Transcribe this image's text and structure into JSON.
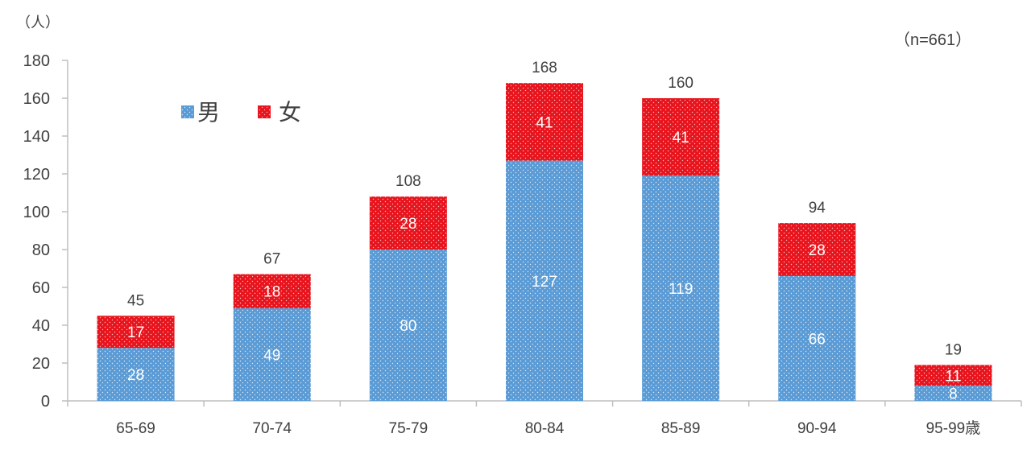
{
  "chart_data": {
    "type": "bar",
    "stacked": true,
    "unit_label": "（人）",
    "note": "（n=661）",
    "categories": [
      "65-69",
      "70-74",
      "75-79",
      "80-84",
      "85-89",
      "90-94",
      "95-99歳"
    ],
    "series": [
      {
        "name": "男",
        "color": "#5b9bd5",
        "pattern": "dotted",
        "values": [
          28,
          49,
          80,
          127,
          119,
          66,
          8
        ]
      },
      {
        "name": "女",
        "color": "#e8141d",
        "pattern": "dotted",
        "values": [
          17,
          18,
          28,
          41,
          41,
          28,
          11
        ]
      }
    ],
    "totals": [
      45,
      67,
      108,
      168,
      160,
      94,
      19
    ],
    "ylim": [
      0,
      180
    ],
    "yticks": [
      0,
      20,
      40,
      60,
      80,
      100,
      120,
      140,
      160,
      180
    ],
    "ytick_labels": [
      "0",
      "20",
      "40",
      "60",
      "80",
      "100",
      "120",
      "140",
      "160",
      "180"
    ],
    "grid": false,
    "legend_position": "top-left"
  }
}
